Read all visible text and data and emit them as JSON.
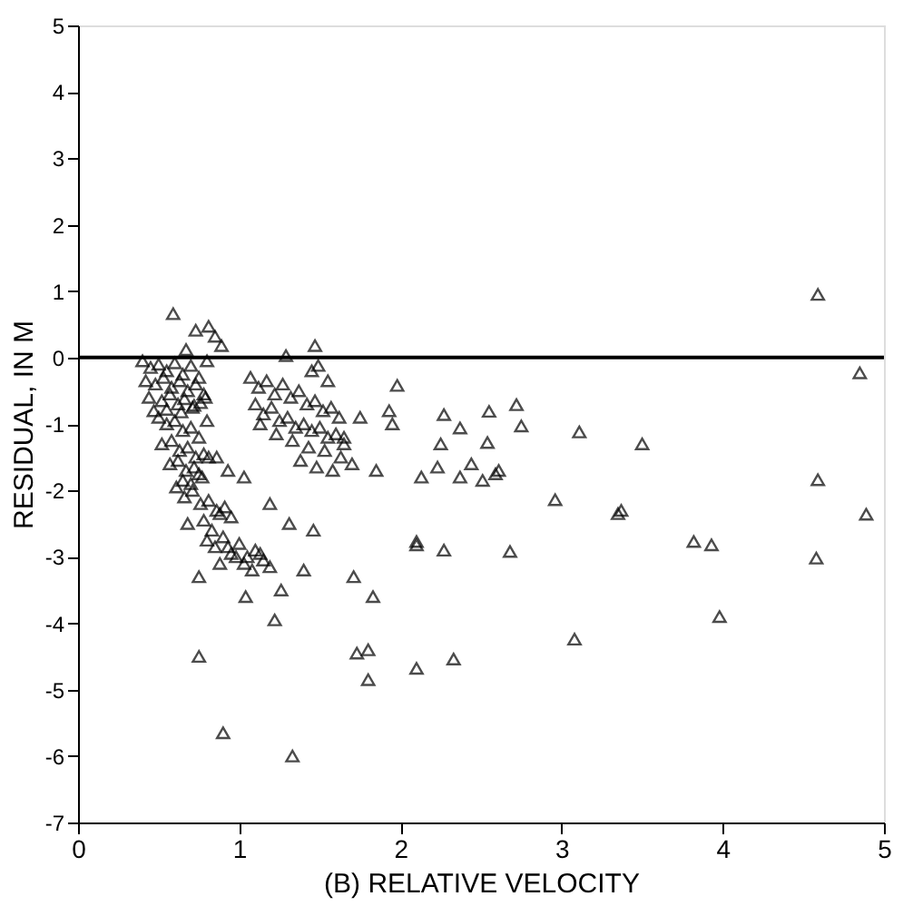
{
  "chart_data": {
    "type": "scatter",
    "xlabel": "(B) RELATIVE VELOCITY",
    "ylabel": "RESIDUAL, IN M",
    "xlim": [
      0,
      5
    ],
    "xticks": [
      0,
      1,
      2,
      3,
      4,
      5
    ],
    "ylim": [
      -7,
      5
    ],
    "yticks": [
      -7,
      -6,
      -5,
      -4,
      -3,
      -2,
      -1,
      0,
      1,
      2,
      3,
      4,
      5
    ],
    "grid": false,
    "legend": false,
    "marker": "triangle",
    "ref_lines": [
      {
        "axis": "y",
        "value": 0,
        "color": "#000000"
      }
    ],
    "series": [
      {
        "color": "#000000",
        "x": [
          0.59,
          0.73,
          0.81,
          0.85,
          0.89,
          0.67,
          0.4,
          0.45,
          0.5,
          0.55,
          0.6,
          0.65,
          0.7,
          0.75,
          0.8,
          0.42,
          0.48,
          0.53,
          0.58,
          0.63,
          0.68,
          0.73,
          0.78,
          0.44,
          0.52,
          0.57,
          0.62,
          0.66,
          0.71,
          0.76,
          0.47,
          0.55,
          0.64,
          0.72,
          0.79,
          0.5,
          0.55,
          0.6,
          0.65,
          0.7,
          0.75,
          0.8,
          0.52,
          0.58,
          0.63,
          0.68,
          0.73,
          0.78,
          0.57,
          0.62,
          0.67,
          0.72,
          0.77,
          0.65,
          0.7,
          0.75,
          0.81,
          0.86,
          0.93,
          1.03,
          1.29,
          1.47,
          1.49,
          1.07,
          1.12,
          1.17,
          1.22,
          1.27,
          1.32,
          1.37,
          1.42,
          1.47,
          1.52,
          1.57,
          1.62,
          1.1,
          1.15,
          1.2,
          1.25,
          1.3,
          1.35,
          1.4,
          1.45,
          1.5,
          1.55,
          1.6,
          1.65,
          1.13,
          1.23,
          1.33,
          1.43,
          1.53,
          1.63,
          1.7,
          1.38,
          1.48,
          1.58,
          1.45,
          1.55,
          0.61,
          0.66,
          0.71,
          0.76,
          0.81,
          0.86,
          0.91,
          0.95,
          0.68,
          0.78,
          0.88,
          0.83,
          0.8,
          0.85,
          0.9,
          0.95,
          1.0,
          1.05,
          1.1,
          1.15,
          1.19,
          0.88,
          0.98,
          1.08,
          0.93,
          1.03,
          1.13,
          1.19,
          1.31,
          1.46,
          0.75,
          1.04,
          1.26,
          1.22,
          1.4,
          1.71,
          1.83,
          1.98,
          1.93,
          1.95,
          2.1,
          1.73,
          0.75,
          0.9,
          1.33,
          1.8,
          1.8,
          1.85,
          1.65,
          1.75,
          4.59,
          4.85,
          4.59,
          4.58,
          4.89,
          3.98,
          3.08,
          3.82,
          3.93,
          3.35,
          3.37,
          3.5,
          3.11,
          2.96,
          2.68,
          2.27,
          2.1,
          2.33,
          2.1,
          2.72,
          2.75,
          2.55,
          2.27,
          2.37,
          2.25,
          2.54,
          2.44,
          2.23,
          2.13,
          2.61,
          2.59,
          2.51,
          2.37
        ],
        "values": [
          0.66,
          0.41,
          0.47,
          0.32,
          0.18,
          0.12,
          -0.05,
          -0.15,
          -0.1,
          -0.2,
          -0.08,
          -0.25,
          -0.12,
          -0.3,
          -0.05,
          -0.35,
          -0.4,
          -0.3,
          -0.45,
          -0.35,
          -0.5,
          -0.4,
          -0.55,
          -0.6,
          -0.65,
          -0.55,
          -0.7,
          -0.62,
          -0.75,
          -0.68,
          -0.8,
          -0.78,
          -0.82,
          -0.72,
          -0.6,
          -0.9,
          -1.0,
          -0.95,
          -1.1,
          -1.05,
          -1.2,
          -0.95,
          -1.3,
          -1.25,
          -1.4,
          -1.35,
          -1.5,
          -1.45,
          -1.6,
          -1.55,
          -1.7,
          -1.65,
          -1.8,
          -1.85,
          -1.9,
          -1.75,
          -1.5,
          -1.5,
          -1.7,
          -1.8,
          0.03,
          0.18,
          -0.12,
          -0.3,
          -0.45,
          -0.35,
          -0.55,
          -0.4,
          -0.6,
          -0.5,
          -0.7,
          -0.65,
          -0.8,
          -0.75,
          -0.9,
          -0.7,
          -0.85,
          -0.75,
          -0.95,
          -0.9,
          -1.05,
          -1.0,
          -1.1,
          -1.05,
          -1.2,
          -1.15,
          -1.3,
          -1.0,
          -1.15,
          -1.25,
          -1.35,
          -1.4,
          -1.5,
          -1.6,
          -1.55,
          -1.65,
          -1.7,
          -0.2,
          -0.35,
          -1.95,
          -2.1,
          -2.0,
          -2.2,
          -2.15,
          -2.3,
          -2.25,
          -2.4,
          -2.5,
          -2.45,
          -2.35,
          -2.6,
          -2.75,
          -2.85,
          -2.7,
          -2.95,
          -2.8,
          -3.0,
          -2.9,
          -3.05,
          -3.15,
          -3.1,
          -3.0,
          -3.2,
          -2.85,
          -3.1,
          -2.95,
          -2.2,
          -2.5,
          -2.6,
          -3.3,
          -3.6,
          -3.5,
          -3.95,
          -3.2,
          -3.3,
          -3.6,
          -0.42,
          -0.8,
          -1.0,
          -2.77,
          -4.45,
          -4.5,
          -5.65,
          -6.0,
          -4.4,
          -4.85,
          -1.7,
          -1.2,
          -0.9,
          0.95,
          -0.23,
          -1.84,
          -3.02,
          -2.36,
          -3.9,
          -4.24,
          -2.77,
          -2.82,
          -2.35,
          -2.3,
          -1.3,
          -1.12,
          -2.14,
          -2.92,
          -2.9,
          -2.82,
          -4.54,
          -4.68,
          -0.71,
          -1.03,
          -0.81,
          -0.86,
          -1.06,
          -1.3,
          -1.28,
          -1.6,
          -1.65,
          -1.8,
          -1.7,
          -1.75,
          -1.85,
          -1.8
        ]
      }
    ]
  }
}
